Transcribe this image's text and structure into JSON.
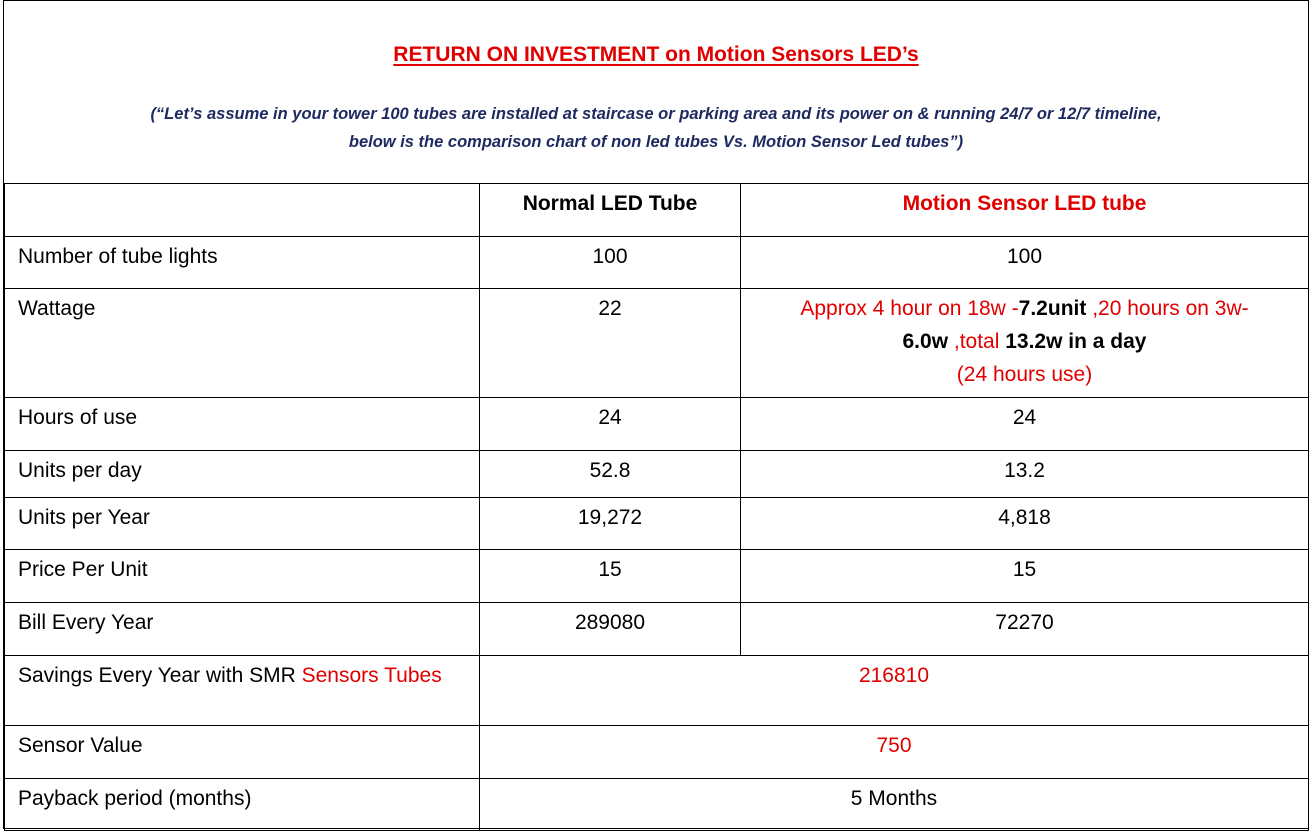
{
  "header": {
    "title": "RETURN ON INVESTMENT on Motion Sensors LED’s",
    "subtitle_line1": "(“Let’s assume in your tower 100 tubes are installed at staircase or parking area and its power on & running 24/7 or 12/7 timeline,",
    "subtitle_line2": "below is the comparison chart of non led tubes Vs. Motion Sensor Led tubes”)"
  },
  "columns": {
    "normal": "Normal LED Tube",
    "motion": "Motion Sensor LED tube"
  },
  "rows": {
    "tubes": {
      "label": "Number of tube lights",
      "normal": "100",
      "motion": "100"
    },
    "wattage": {
      "label": "Wattage",
      "normal": "22",
      "motion_part1": "Approx 4 hour on 18w -",
      "motion_part2": "7.2unit",
      "motion_part3": " ,20 hours on 3w-",
      "motion_part4": "6.0w",
      "motion_part5": " ,total ",
      "motion_part6": " 13.2w in a day",
      "motion_part7": "(24 hours use)"
    },
    "hours": {
      "label": "Hours of use",
      "normal": "24",
      "motion": "24"
    },
    "units_day": {
      "label": "Units per day",
      "normal": "52.8",
      "motion": "13.2"
    },
    "units_year": {
      "label": "Units per Year",
      "normal": "19,272",
      "motion": "4,818"
    },
    "price": {
      "label": "Price Per Unit",
      "normal": "15",
      "motion": "15"
    },
    "bill": {
      "label": "Bill Every Year",
      "normal": "289080",
      "motion": "72270"
    },
    "savings": {
      "label_part1": "Savings Every Year with SMR ",
      "label_part2": "Sensors Tubes",
      "value": "216810"
    },
    "sensor": {
      "label": "Sensor Value",
      "value": "750"
    },
    "payback": {
      "label": "Payback period (months)",
      "value": "5 Months"
    }
  },
  "colors": {
    "accent_red": "#e00000",
    "subtitle_navy": "#1f2a60"
  }
}
